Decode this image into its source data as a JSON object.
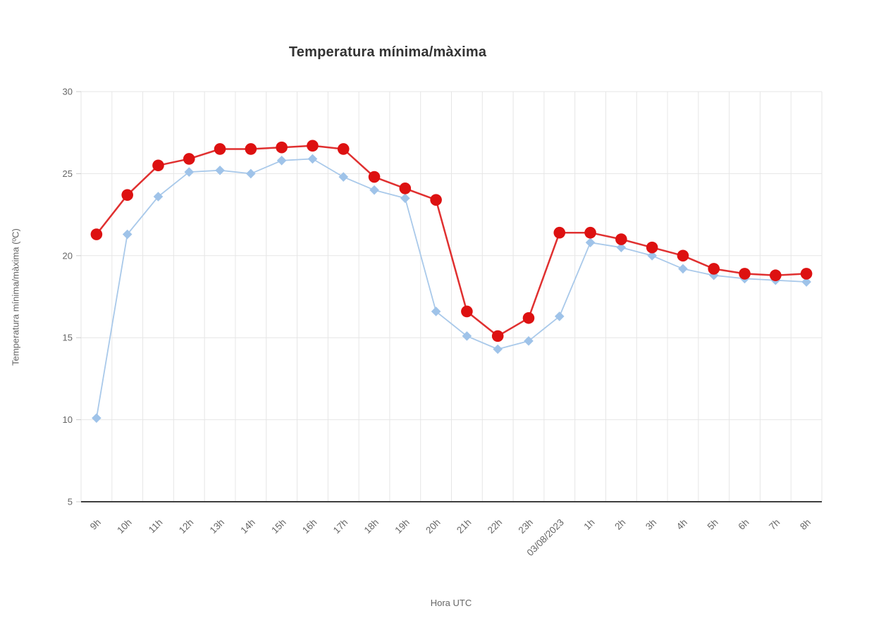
{
  "header": {
    "title": "Temperatura mínima/màxima"
  },
  "toolbar": {
    "menu_icon": "hamburger-icon"
  },
  "chart_data": {
    "type": "line",
    "title": "Temperatura mínima/màxima",
    "xlabel": "Hora UTC",
    "ylabel": "Temperatura mínima/màxima (ºC)",
    "ylim": [
      5,
      30
    ],
    "yticks": [
      5,
      10,
      15,
      20,
      25,
      30
    ],
    "grid": true,
    "legend_position": "none",
    "categories": [
      "9h",
      "10h",
      "11h",
      "12h",
      "13h",
      "14h",
      "15h",
      "16h",
      "17h",
      "18h",
      "19h",
      "20h",
      "21h",
      "22h",
      "23h",
      "03/08/2023",
      "1h",
      "2h",
      "3h",
      "4h",
      "5h",
      "6h",
      "7h",
      "8h"
    ],
    "series": [
      {
        "name": "mínima",
        "marker": "diamond",
        "line_color": "#a9c9ea",
        "marker_color": "#9fc3e9",
        "values": [
          10.1,
          21.3,
          23.6,
          25.1,
          25.2,
          25.0,
          25.8,
          25.9,
          24.8,
          24.0,
          23.5,
          16.6,
          15.1,
          14.3,
          14.8,
          16.3,
          20.8,
          20.5,
          20.0,
          19.2,
          18.8,
          18.6,
          18.5,
          18.4
        ]
      },
      {
        "name": "màxima",
        "marker": "circle",
        "line_color": "#e03030",
        "marker_color": "#dd1111",
        "values": [
          21.3,
          23.7,
          25.5,
          25.9,
          26.5,
          26.5,
          26.6,
          26.7,
          26.5,
          24.8,
          24.1,
          23.4,
          16.6,
          15.1,
          16.2,
          21.4,
          21.4,
          21.0,
          20.5,
          20.0,
          19.2,
          18.9,
          18.8,
          18.9
        ]
      }
    ]
  },
  "colors": {
    "grid": "#e6e6e6",
    "axis_line": "#3f3f3f",
    "tick_mark": "#cccccc",
    "tick_label": "#666666",
    "title": "#333333",
    "series_min": "#9fc3e9",
    "series_max": "#dd1111"
  }
}
